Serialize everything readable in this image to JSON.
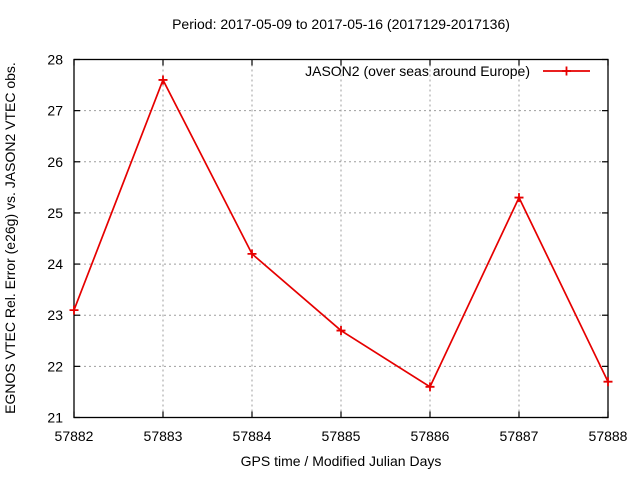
{
  "title": "Period: 2017-05-09 to 2017-05-16 (2017129-2017136)",
  "chart_data": {
    "type": "line",
    "title": "Period: 2017-05-09 to 2017-05-16 (2017129-2017136)",
    "xlabel": "GPS time / Modified Julian Days",
    "ylabel": "EGNOS VTEC Rel. Error (e26g) vs. JASON2 VTEC obs.",
    "xlim": [
      57882,
      57888
    ],
    "ylim": [
      21,
      28
    ],
    "x_ticks": [
      57882,
      57883,
      57884,
      57885,
      57886,
      57887,
      57888
    ],
    "y_ticks": [
      21,
      22,
      23,
      24,
      25,
      26,
      27,
      28
    ],
    "grid": true,
    "legend_position": "top-right-inside",
    "series": [
      {
        "name": "JASON2 (over seas around Europe)",
        "color": "#e60000",
        "marker": "plus",
        "x": [
          57882,
          57883,
          57884,
          57885,
          57886,
          57887,
          57888
        ],
        "y": [
          23.1,
          27.6,
          24.2,
          22.7,
          21.6,
          25.3,
          21.7
        ]
      }
    ],
    "colors": {
      "line": "#e60000",
      "grid": "#9e9e9e",
      "axis": "#000000",
      "text": "#000000",
      "background": "#ffffff"
    }
  }
}
